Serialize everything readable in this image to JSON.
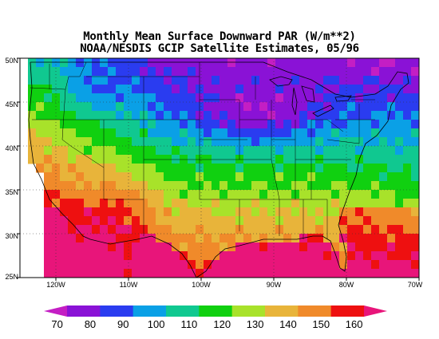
{
  "title": {
    "line1": "Monthly Mean Surface Downward PAR (W/m**2)",
    "line2": "NOAA/NESDIS GCIP Satellite Estimates, 05/96"
  },
  "map": {
    "lat_labels": [
      "50N",
      "45N",
      "40N",
      "35N",
      "30N",
      "25N"
    ],
    "lon_labels": [
      "120W",
      "110W",
      "100W",
      "90W",
      "80W",
      "70W"
    ],
    "lat_range": [
      25,
      50
    ],
    "lon_range": [
      -125,
      -70
    ]
  },
  "colorbar": {
    "labels": [
      "70",
      "80",
      "90",
      "100",
      "110",
      "120",
      "130",
      "140",
      "150",
      "160"
    ],
    "colors": [
      "#c41ec4",
      "#8a12d6",
      "#2a3cf0",
      "#0aa0e6",
      "#10c890",
      "#10d010",
      "#a8e22a",
      "#e8b43a",
      "#f08a2a",
      "#ee1010",
      "#e8157a"
    ],
    "units": "W/m**2"
  }
}
